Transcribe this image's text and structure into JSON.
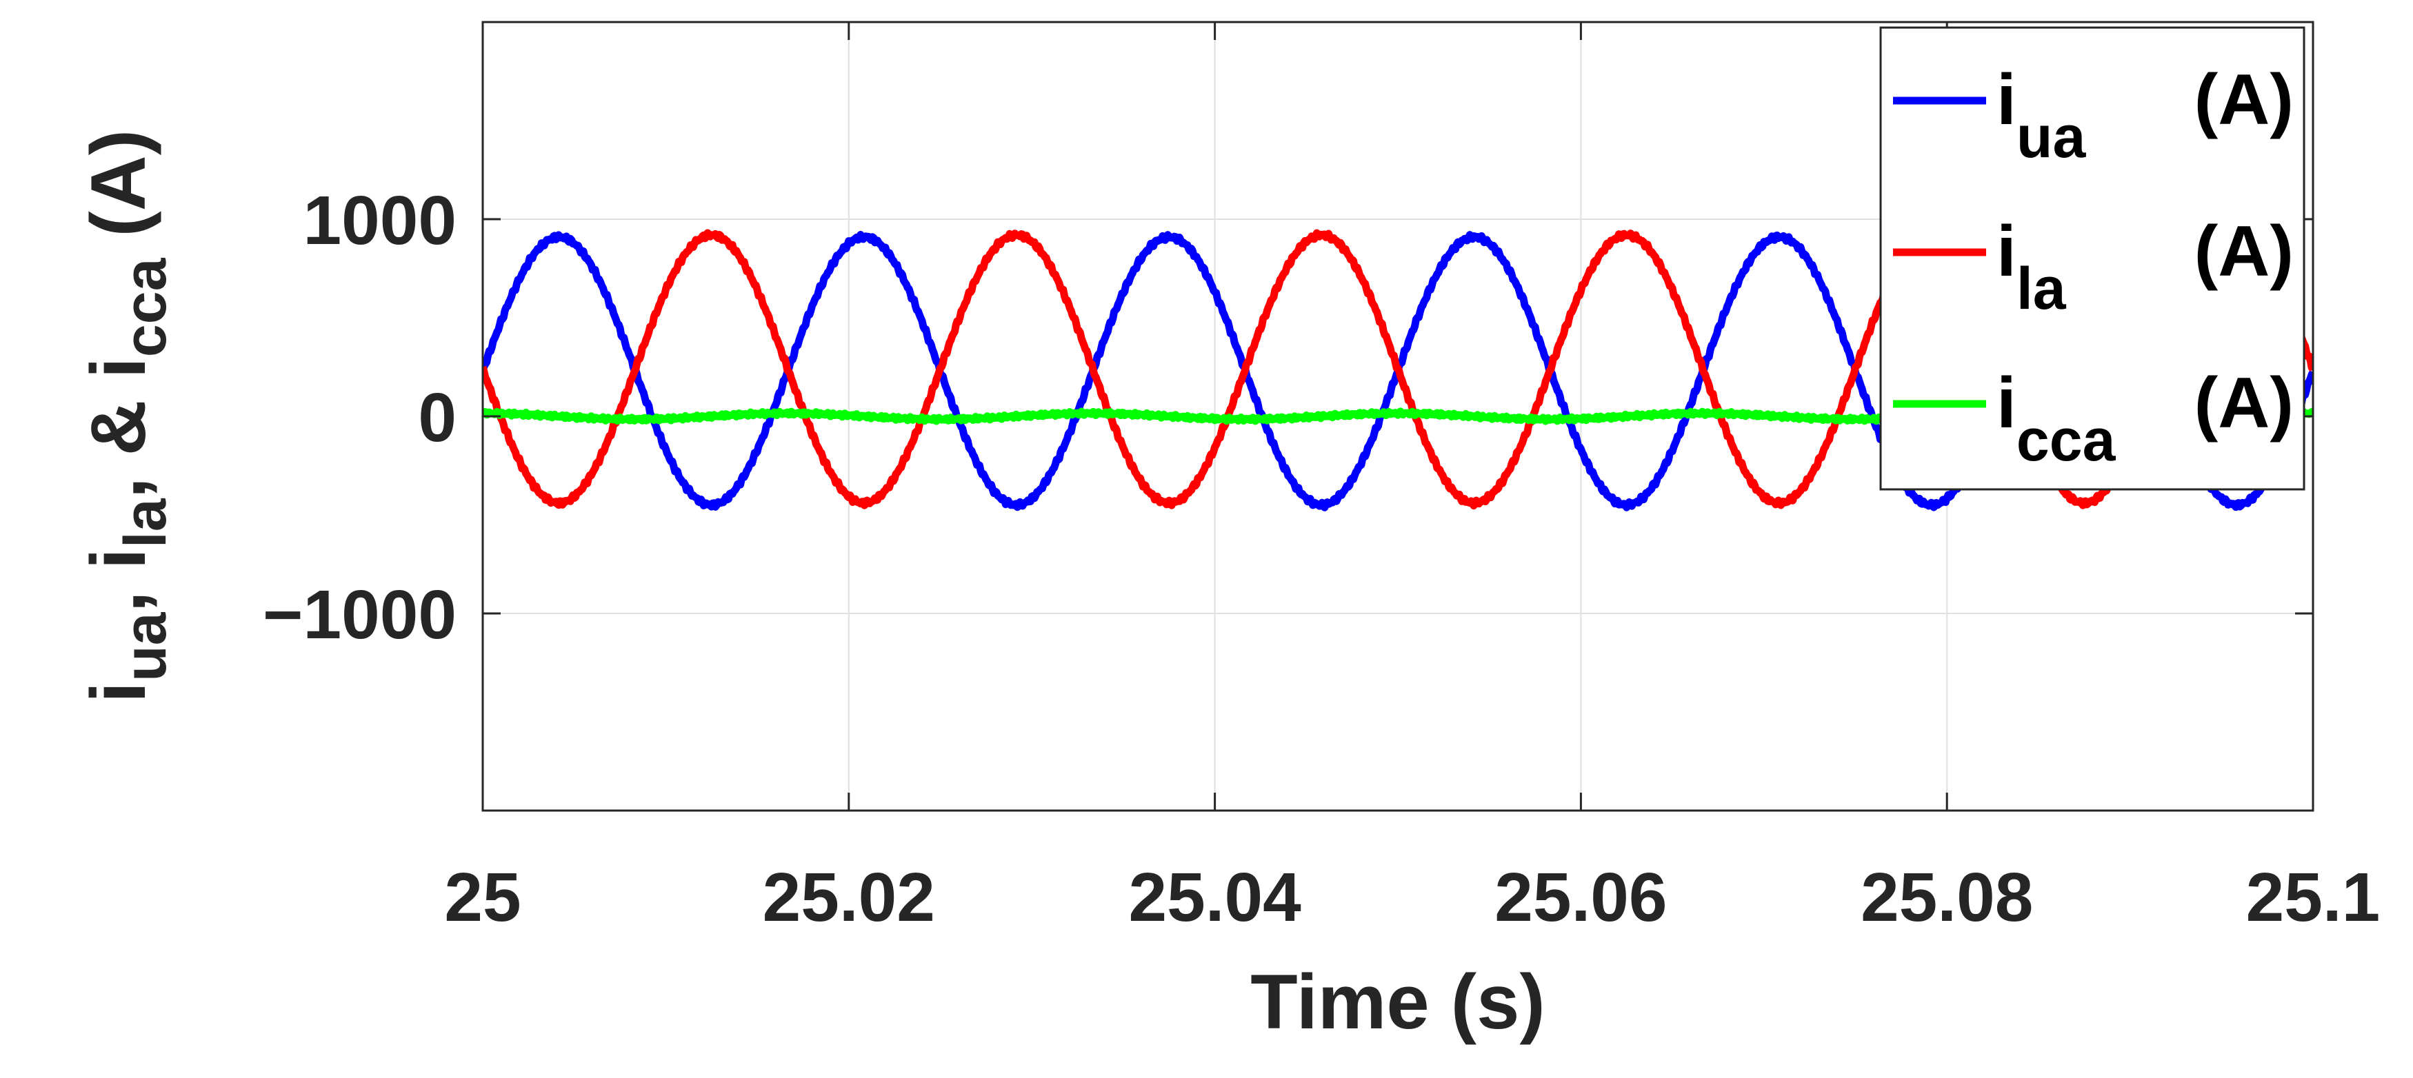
{
  "chart_data": {
    "type": "line",
    "xlabel": "Time (s)",
    "ylabel": {
      "parts": [
        {
          "t": "i",
          "sub": false
        },
        {
          "t": "ua",
          "sub": true
        },
        {
          "t": ", i",
          "sub": false
        },
        {
          "t": "la",
          "sub": true
        },
        {
          "t": ", & i",
          "sub": false
        },
        {
          "t": "cca",
          "sub": true
        },
        {
          "t": " (A)",
          "sub": false
        }
      ]
    },
    "xlim": [
      25,
      25.1
    ],
    "ylim": [
      -2000,
      2000
    ],
    "xticks": [
      25,
      25.02,
      25.04,
      25.06,
      25.08,
      25.1
    ],
    "xtick_labels": [
      "25",
      "25.02",
      "25.04",
      "25.06",
      "25.08",
      "25.1"
    ],
    "yticks": [
      -1000,
      0,
      1000
    ],
    "ytick_labels": [
      "−1000",
      "0",
      "1000"
    ],
    "grid": true,
    "legend_position": "top-right",
    "series": [
      {
        "name": "i_ua (A)",
        "label_main": "i",
        "label_sub": "ua",
        "label_unit": "(A)",
        "color": "#0000ff",
        "waveform": {
          "type": "sine",
          "offset": 230,
          "amplitude": 680,
          "frequency_hz": 60,
          "phase_deg": 0
        }
      },
      {
        "name": "i_la (A)",
        "label_main": "i",
        "label_sub": "la",
        "label_unit": "(A)",
        "color": "#ff0000",
        "waveform": {
          "type": "sine",
          "offset": 240,
          "amplitude": 680,
          "frequency_hz": 60,
          "phase_deg": 180
        }
      },
      {
        "name": "i_cca (A)",
        "label_main": "i",
        "label_sub": "cca",
        "label_unit": "(A)",
        "color": "#00ff00",
        "waveform": {
          "type": "sine",
          "offset": 0,
          "amplitude": 15,
          "frequency_hz": 60,
          "phase_deg": 90
        }
      }
    ]
  }
}
